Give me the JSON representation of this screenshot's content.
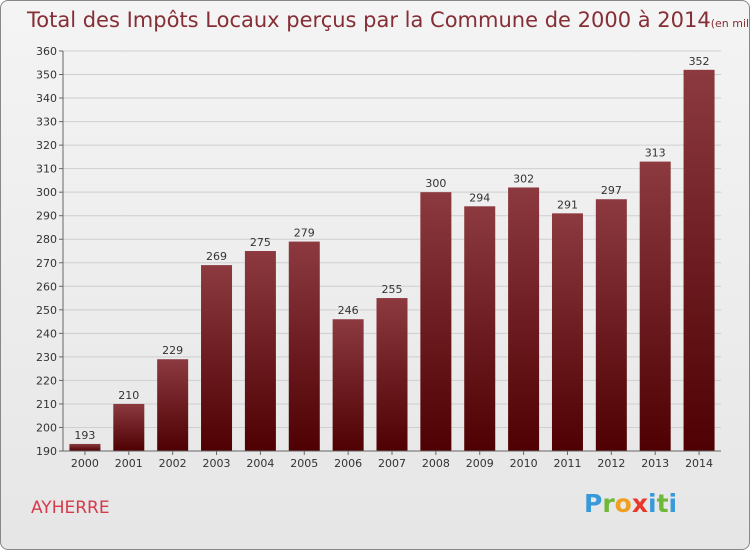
{
  "header": {
    "title": "Total des Impôts Locaux perçus par la Commune de 2000 à 2014",
    "subtitle": "(en milliers d'€)"
  },
  "commune": "AYHERRE",
  "logo": {
    "letters": [
      "P",
      "r",
      "o",
      "x",
      "i",
      "t",
      "i"
    ],
    "colors": [
      "#3a9ad9",
      "#6fb83a",
      "#f0a020",
      "#e8382a",
      "#3a9ad9",
      "#6fb83a",
      "#3a9ad9"
    ]
  },
  "colors": {
    "bar_top": "#8c3a40",
    "bar_bottom": "#4e0002",
    "grid": "#cfcfcf",
    "axis_text": "#333333"
  },
  "chart_data": {
    "type": "bar",
    "title": "Total des Impôts Locaux perçus par la Commune de 2000 à 2014",
    "subtitle": "(en milliers d'€)",
    "categories": [
      "2000",
      "2001",
      "2002",
      "2003",
      "2004",
      "2005",
      "2006",
      "2007",
      "2008",
      "2009",
      "2010",
      "2011",
      "2012",
      "2013",
      "2014"
    ],
    "values": [
      193,
      210,
      229,
      269,
      275,
      279,
      246,
      255,
      300,
      294,
      302,
      291,
      297,
      313,
      352
    ],
    "data_labels": [
      "193",
      "210",
      "229",
      "269",
      "275",
      "279",
      "246",
      "255",
      "300",
      "294",
      "302",
      "291",
      "297",
      "313",
      "352"
    ],
    "ylim": [
      190,
      360
    ],
    "yticks": [
      "190",
      "200",
      "210",
      "220",
      "230",
      "240",
      "250",
      "260",
      "270",
      "280",
      "290",
      "300",
      "310",
      "320",
      "330",
      "340",
      "350",
      "360"
    ],
    "grid": true,
    "legend": "none"
  }
}
